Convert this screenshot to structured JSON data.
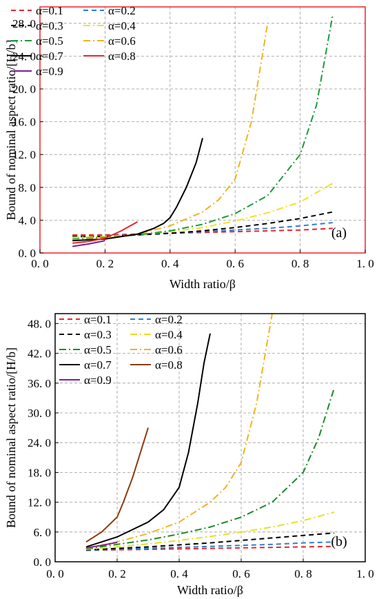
{
  "chart_data": [
    {
      "type": "line",
      "panel_label": "(a)",
      "xlabel": "Width ratio/β",
      "ylabel": "Bound of  nominal aspect ratio/[H/b]",
      "xlim": [
        0.0,
        1.0
      ],
      "ylim": [
        0.0,
        30.0
      ],
      "x_ticks": [
        "0. 0",
        "0. 2",
        "0. 4",
        "0. 6",
        "0. 8",
        "1. 0"
      ],
      "y_ticks": [
        "0. 0",
        "4. 0",
        "8. 0",
        "12. 0",
        "16. 0",
        "20. 0",
        "24. 0",
        "28. 0"
      ],
      "grid": true,
      "legend": "top-left",
      "series": [
        {
          "name": "α=0.1",
          "color": "#e8242a",
          "dash": "dash",
          "x": [
            0.1,
            0.2,
            0.3,
            0.4,
            0.5,
            0.6,
            0.7,
            0.8,
            0.9
          ],
          "y": [
            2.2,
            2.2,
            2.3,
            2.4,
            2.5,
            2.6,
            2.7,
            2.8,
            3.0
          ]
        },
        {
          "name": "α=0.2",
          "color": "#2a7fd4",
          "dash": "dash",
          "x": [
            0.1,
            0.2,
            0.3,
            0.4,
            0.5,
            0.6,
            0.7,
            0.8,
            0.9
          ],
          "y": [
            2.1,
            2.1,
            2.2,
            2.4,
            2.6,
            2.8,
            3.0,
            3.3,
            3.7
          ]
        },
        {
          "name": "α=0.3",
          "color": "#000000",
          "dash": "dash",
          "x": [
            0.1,
            0.2,
            0.3,
            0.4,
            0.5,
            0.6,
            0.7,
            0.8,
            0.9
          ],
          "y": [
            2.0,
            2.0,
            2.2,
            2.4,
            2.7,
            3.1,
            3.6,
            4.2,
            5.0
          ]
        },
        {
          "name": "α=0.4",
          "color": "#f2e31b",
          "dash": "dashdot",
          "x": [
            0.1,
            0.2,
            0.3,
            0.4,
            0.5,
            0.6,
            0.7,
            0.8,
            0.9
          ],
          "y": [
            1.9,
            2.0,
            2.2,
            2.6,
            3.1,
            3.9,
            4.9,
            6.2,
            8.5
          ]
        },
        {
          "name": "α=0.5",
          "color": "#1a9a3a",
          "dash": "dashdot",
          "x": [
            0.1,
            0.2,
            0.3,
            0.4,
            0.5,
            0.6,
            0.7,
            0.8,
            0.85,
            0.9
          ],
          "y": [
            1.7,
            1.9,
            2.2,
            2.7,
            3.5,
            4.8,
            7.0,
            12.0,
            18.0,
            29.0
          ]
        },
        {
          "name": "α=0.6",
          "color": "#f0b41c",
          "dash": "dashdot",
          "x": [
            0.1,
            0.2,
            0.3,
            0.4,
            0.5,
            0.55,
            0.6,
            0.65,
            0.7
          ],
          "y": [
            1.6,
            1.8,
            2.3,
            3.3,
            5.0,
            6.5,
            9.0,
            16.0,
            28.0
          ]
        },
        {
          "name": "α=0.7",
          "color": "#000000",
          "dash": "solid",
          "x": [
            0.1,
            0.2,
            0.3,
            0.35,
            0.38,
            0.4,
            0.42,
            0.45,
            0.48,
            0.5
          ],
          "y": [
            1.5,
            1.7,
            2.3,
            3.0,
            3.6,
            4.3,
            5.6,
            8.0,
            11.0,
            14.0
          ]
        },
        {
          "name": "α=0.8",
          "color": "#e8242a",
          "dash": "solid",
          "x": [
            0.1,
            0.15,
            0.2,
            0.25,
            0.3
          ],
          "y": [
            1.2,
            1.4,
            1.8,
            2.7,
            3.8
          ]
        },
        {
          "name": "α=0.9",
          "color": "#7a1f8f",
          "dash": "solid",
          "x": [
            0.1,
            0.15,
            0.2
          ],
          "y": [
            0.8,
            1.1,
            1.5
          ]
        }
      ]
    },
    {
      "type": "line",
      "panel_label": "(b)",
      "xlabel": "Width ratio/β",
      "ylabel": "Bound of  nominal aspect ratio/[H/b]",
      "xlim": [
        0.0,
        1.0
      ],
      "ylim": [
        0.0,
        50.0
      ],
      "x_ticks": [
        "0. 0",
        "0. 2",
        "0. 4",
        "0. 6",
        "0. 8",
        "1. 0"
      ],
      "y_ticks": [
        "0. 0",
        "6. 0",
        "12. 0",
        "18. 0",
        "24. 0",
        "30. 0",
        "36. 0",
        "42. 0",
        "48. 0"
      ],
      "grid": true,
      "legend": "top-left",
      "series": [
        {
          "name": "α=0.1",
          "color": "#e8242a",
          "dash": "dash",
          "x": [
            0.1,
            0.2,
            0.3,
            0.4,
            0.5,
            0.6,
            0.7,
            0.8,
            0.9
          ],
          "y": [
            2.3,
            2.4,
            2.5,
            2.6,
            2.7,
            2.8,
            2.9,
            3.0,
            3.1
          ]
        },
        {
          "name": "α=0.2",
          "color": "#2a7fd4",
          "dash": "dash",
          "x": [
            0.1,
            0.2,
            0.3,
            0.4,
            0.5,
            0.6,
            0.7,
            0.8,
            0.9
          ],
          "y": [
            2.3,
            2.5,
            2.7,
            2.9,
            3.1,
            3.3,
            3.5,
            3.8,
            4.0
          ]
        },
        {
          "name": "α=0.3",
          "color": "#000000",
          "dash": "dash",
          "x": [
            0.1,
            0.2,
            0.3,
            0.4,
            0.5,
            0.6,
            0.7,
            0.8,
            0.9
          ],
          "y": [
            2.4,
            2.7,
            3.0,
            3.4,
            3.8,
            4.3,
            4.8,
            5.3,
            5.8
          ]
        },
        {
          "name": "α=0.4",
          "color": "#e6e020",
          "dash": "dashdot",
          "x": [
            0.1,
            0.2,
            0.3,
            0.4,
            0.5,
            0.6,
            0.7,
            0.8,
            0.9
          ],
          "y": [
            2.5,
            3.0,
            3.6,
            4.3,
            5.1,
            6.0,
            7.0,
            8.3,
            10.0
          ]
        },
        {
          "name": "α=0.5",
          "color": "#1a8a2a",
          "dash": "dashdot",
          "x": [
            0.1,
            0.2,
            0.3,
            0.4,
            0.5,
            0.6,
            0.7,
            0.8,
            0.85,
            0.9
          ],
          "y": [
            2.6,
            3.5,
            4.4,
            5.6,
            7.0,
            9.0,
            12.0,
            18.0,
            25.0,
            35.0
          ]
        },
        {
          "name": "α=0.6",
          "color": "#f0b41c",
          "dash": "dashdot",
          "x": [
            0.1,
            0.2,
            0.3,
            0.4,
            0.5,
            0.55,
            0.6,
            0.65,
            0.7
          ],
          "y": [
            2.7,
            4.0,
            5.7,
            8.0,
            12.0,
            15.0,
            20.0,
            32.0,
            50.0
          ]
        },
        {
          "name": "α=0.7",
          "color": "#000000",
          "dash": "solid",
          "x": [
            0.1,
            0.2,
            0.3,
            0.35,
            0.4,
            0.43,
            0.46,
            0.48,
            0.5
          ],
          "y": [
            3.0,
            5.0,
            8.0,
            10.5,
            15.0,
            22.0,
            32.0,
            40.0,
            46.0
          ]
        },
        {
          "name": "α=0.8",
          "color": "#8b3a0e",
          "dash": "solid",
          "x": [
            0.1,
            0.15,
            0.2,
            0.22,
            0.25,
            0.28,
            0.3
          ],
          "y": [
            4.0,
            6.0,
            9.0,
            12.0,
            17.0,
            23.0,
            27.0
          ]
        },
        {
          "name": "α=0.9",
          "color": "#7a1f8f",
          "dash": "solid",
          "x": [
            0.1,
            0.15,
            0.2
          ],
          "y": [
            2.8,
            3.3,
            3.9
          ]
        }
      ]
    }
  ]
}
